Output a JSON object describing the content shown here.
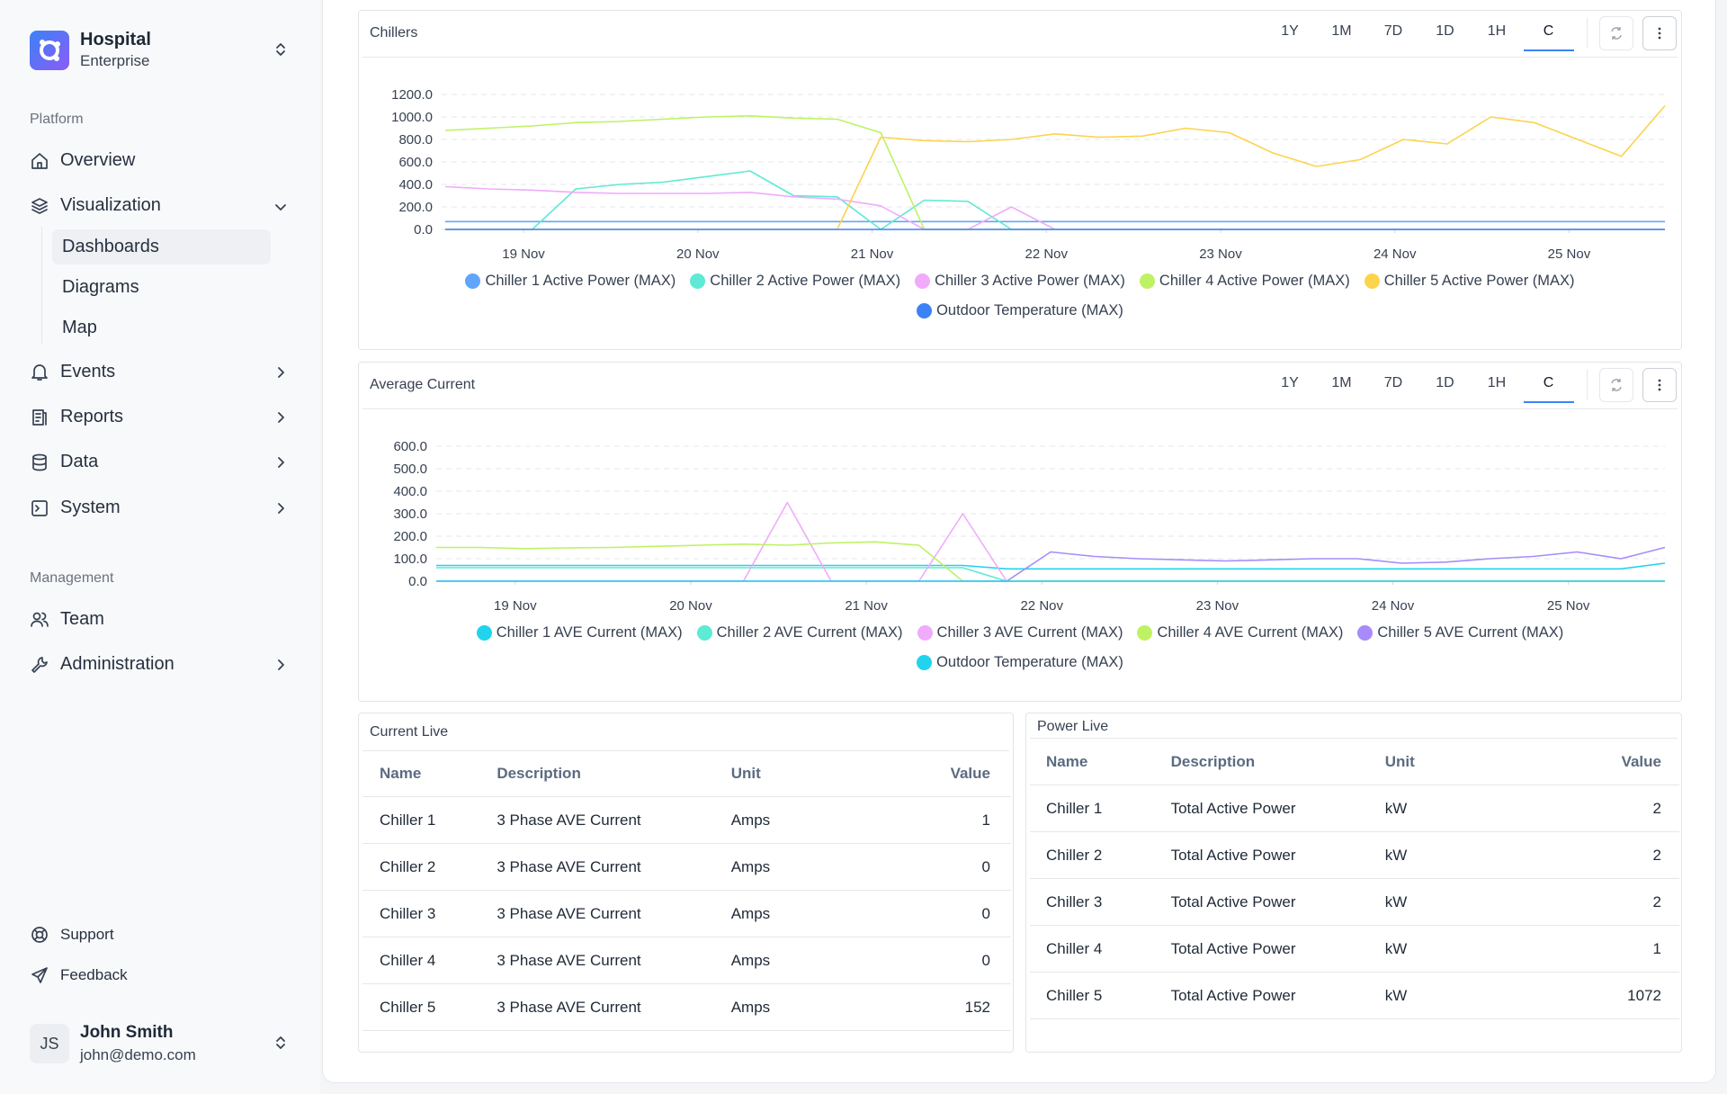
{
  "sidebar": {
    "org_name": "Hospital",
    "org_plan": "Enterprise",
    "platform_label": "Platform",
    "nav": [
      "Overview",
      "Visualization",
      "Dashboards",
      "Diagrams",
      "Map",
      "Events",
      "Reports",
      "Data",
      "System"
    ],
    "management_label": "Management",
    "management_nav": [
      "Team",
      "Administration"
    ],
    "footer_nav": [
      "Support",
      "Feedback"
    ],
    "user": {
      "initials": "JS",
      "name": "John Smith",
      "email": "john@demo.com"
    }
  },
  "range_buttons": [
    "1Y",
    "1M",
    "7D",
    "1D",
    "1H",
    "C"
  ],
  "chart_data": [
    {
      "type": "line",
      "title": "Chillers",
      "grid": true,
      "x": [
        18.55,
        18.8,
        19.05,
        19.3,
        19.55,
        19.8,
        20.05,
        20.3,
        20.55,
        20.8,
        21.05,
        21.3,
        21.55,
        21.8,
        22.05,
        22.3,
        22.55,
        22.8,
        23.05,
        23.3,
        23.55,
        23.8,
        24.05,
        24.3,
        24.55,
        24.8,
        25.05,
        25.3,
        25.55
      ],
      "xlim": [
        18.53,
        25.55
      ],
      "xticks": [
        {
          "value": 19,
          "label": "19 Nov"
        },
        {
          "value": 20,
          "label": "20 Nov"
        },
        {
          "value": 21,
          "label": "21 Nov"
        },
        {
          "value": 22,
          "label": "22 Nov"
        },
        {
          "value": 23,
          "label": "23 Nov"
        },
        {
          "value": 24,
          "label": "24 Nov"
        },
        {
          "value": 25,
          "label": "25 Nov"
        }
      ],
      "ylim": [
        0,
        1200
      ],
      "yticks": [
        {
          "value": 0,
          "label": "0.0"
        },
        {
          "value": 200,
          "label": "200.0"
        },
        {
          "value": 400,
          "label": "400.0"
        },
        {
          "value": 600,
          "label": "600.0"
        },
        {
          "value": 800,
          "label": "800.0"
        },
        {
          "value": 1000,
          "label": "1000.0"
        },
        {
          "value": 1200,
          "label": "1200.0"
        }
      ],
      "series": [
        {
          "name": "Chiller 1 Active Power (MAX)",
          "color": "#60a5fa",
          "values": [
            70,
            70,
            70,
            70,
            70,
            70,
            70,
            70,
            70,
            70,
            70,
            70,
            70,
            70,
            70,
            70,
            70,
            70,
            70,
            70,
            70,
            70,
            70,
            70,
            70,
            70,
            70,
            70,
            70
          ]
        },
        {
          "name": "Chiller 2 Active Power (MAX)",
          "color": "#5eead4",
          "values": [
            0,
            0,
            0,
            360,
            400,
            420,
            470,
            520,
            300,
            290,
            0,
            260,
            250,
            0,
            0,
            0,
            0,
            0,
            0,
            0,
            0,
            0,
            0,
            0,
            0,
            0,
            0,
            0,
            0
          ]
        },
        {
          "name": "Chiller 3 Active Power (MAX)",
          "color": "#f0abfc",
          "values": [
            380,
            360,
            350,
            330,
            320,
            320,
            320,
            330,
            290,
            270,
            210,
            0,
            0,
            200,
            0,
            0,
            0,
            0,
            0,
            0,
            0,
            0,
            0,
            0,
            0,
            0,
            0,
            0,
            0
          ]
        },
        {
          "name": "Chiller 4 Active Power (MAX)",
          "color": "#bef264",
          "values": [
            880,
            900,
            920,
            950,
            960,
            980,
            1000,
            1010,
            990,
            980,
            860,
            0,
            0,
            0,
            0,
            0,
            0,
            0,
            0,
            0,
            0,
            0,
            0,
            0,
            0,
            0,
            0,
            0,
            0
          ]
        },
        {
          "name": "Chiller 5 Active Power (MAX)",
          "color": "#fcd34d",
          "values": [
            0,
            0,
            0,
            0,
            0,
            0,
            0,
            0,
            0,
            0,
            820,
            790,
            780,
            800,
            850,
            820,
            830,
            900,
            860,
            680,
            560,
            620,
            800,
            760,
            1000,
            950,
            800,
            650,
            1100
          ]
        },
        {
          "name": "Outdoor Temperature (MAX)",
          "color": "#3b82f6",
          "values": [
            0,
            0,
            0,
            0,
            0,
            0,
            0,
            0,
            0,
            0,
            0,
            0,
            0,
            0,
            0,
            0,
            0,
            0,
            0,
            0,
            0,
            0,
            0,
            0,
            0,
            0,
            0,
            0,
            0
          ]
        }
      ]
    },
    {
      "type": "line",
      "title": "Average Current",
      "grid": true,
      "x": [
        18.55,
        18.8,
        19.05,
        19.3,
        19.55,
        19.8,
        20.05,
        20.3,
        20.55,
        20.8,
        21.05,
        21.3,
        21.55,
        21.8,
        22.05,
        22.3,
        22.55,
        22.8,
        23.05,
        23.3,
        23.55,
        23.8,
        24.05,
        24.3,
        24.55,
        24.8,
        25.05,
        25.3,
        25.55
      ],
      "xlim": [
        18.55,
        25.55
      ],
      "xticks": [
        {
          "value": 19,
          "label": "19 Nov"
        },
        {
          "value": 20,
          "label": "20 Nov"
        },
        {
          "value": 21,
          "label": "21 Nov"
        },
        {
          "value": 22,
          "label": "22 Nov"
        },
        {
          "value": 23,
          "label": "23 Nov"
        },
        {
          "value": 24,
          "label": "24 Nov"
        },
        {
          "value": 25,
          "label": "25 Nov"
        }
      ],
      "ylim": [
        0,
        600
      ],
      "yticks": [
        {
          "value": 0,
          "label": "0.0"
        },
        {
          "value": 100,
          "label": "100.0"
        },
        {
          "value": 200,
          "label": "200.0"
        },
        {
          "value": 300,
          "label": "300.0"
        },
        {
          "value": 400,
          "label": "400.0"
        },
        {
          "value": 500,
          "label": "500.0"
        },
        {
          "value": 600,
          "label": "600.0"
        }
      ],
      "series": [
        {
          "name": "Chiller 1 AVE Current (MAX)",
          "color": "#22d3ee",
          "values": [
            70,
            70,
            70,
            70,
            70,
            70,
            70,
            70,
            70,
            70,
            70,
            70,
            70,
            55,
            55,
            55,
            55,
            55,
            55,
            55,
            55,
            55,
            55,
            55,
            55,
            55,
            55,
            55,
            80
          ]
        },
        {
          "name": "Chiller 2 AVE Current (MAX)",
          "color": "#5eead4",
          "values": [
            60,
            60,
            60,
            60,
            60,
            60,
            60,
            60,
            60,
            60,
            60,
            60,
            60,
            0,
            0,
            0,
            0,
            0,
            0,
            0,
            0,
            0,
            0,
            0,
            0,
            0,
            0,
            0,
            0
          ]
        },
        {
          "name": "Chiller 3 AVE Current (MAX)",
          "color": "#f0abfc",
          "values": [
            0,
            0,
            0,
            0,
            0,
            0,
            0,
            0,
            350,
            0,
            0,
            0,
            300,
            0,
            0,
            0,
            0,
            0,
            0,
            0,
            0,
            0,
            0,
            0,
            0,
            0,
            0,
            0,
            0
          ]
        },
        {
          "name": "Chiller 4 AVE Current (MAX)",
          "color": "#bef264",
          "values": [
            150,
            150,
            145,
            148,
            150,
            155,
            160,
            165,
            160,
            170,
            175,
            160,
            0,
            0,
            0,
            0,
            0,
            0,
            0,
            0,
            0,
            0,
            0,
            0,
            0,
            0,
            0,
            0,
            0
          ]
        },
        {
          "name": "Chiller 5 AVE Current (MAX)",
          "color": "#a78bfa",
          "values": [
            0,
            0,
            0,
            0,
            0,
            0,
            0,
            0,
            0,
            0,
            0,
            0,
            0,
            0,
            130,
            110,
            100,
            95,
            90,
            95,
            100,
            100,
            80,
            85,
            100,
            110,
            130,
            100,
            150
          ]
        },
        {
          "name": "Outdoor Temperature (MAX)",
          "color": "#22d3ee",
          "values": [
            0,
            0,
            0,
            0,
            0,
            0,
            0,
            0,
            0,
            0,
            0,
            0,
            0,
            0,
            0,
            0,
            0,
            0,
            0,
            0,
            0,
            0,
            0,
            0,
            0,
            0,
            0,
            0,
            0
          ]
        }
      ]
    }
  ],
  "tables": [
    {
      "title": "Current Live",
      "columns": [
        "Name",
        "Description",
        "Unit",
        "Value"
      ],
      "rows": [
        [
          "Chiller 1",
          "3 Phase AVE Current",
          "Amps",
          1
        ],
        [
          "Chiller 2",
          "3 Phase AVE Current",
          "Amps",
          0
        ],
        [
          "Chiller 3",
          "3 Phase AVE Current",
          "Amps",
          0
        ],
        [
          "Chiller 4",
          "3 Phase AVE Current",
          "Amps",
          0
        ],
        [
          "Chiller 5",
          "3 Phase AVE Current",
          "Amps",
          152
        ]
      ]
    },
    {
      "title": "Power Live",
      "columns": [
        "Name",
        "Description",
        "Unit",
        "Value"
      ],
      "rows": [
        [
          "Chiller 1",
          "Total Active Power",
          "kW",
          2
        ],
        [
          "Chiller 2",
          "Total Active Power",
          "kW",
          2
        ],
        [
          "Chiller 3",
          "Total Active Power",
          "kW",
          2
        ],
        [
          "Chiller 4",
          "Total Active Power",
          "kW",
          1
        ],
        [
          "Chiller 5",
          "Total Active Power",
          "kW",
          1072
        ]
      ]
    }
  ]
}
